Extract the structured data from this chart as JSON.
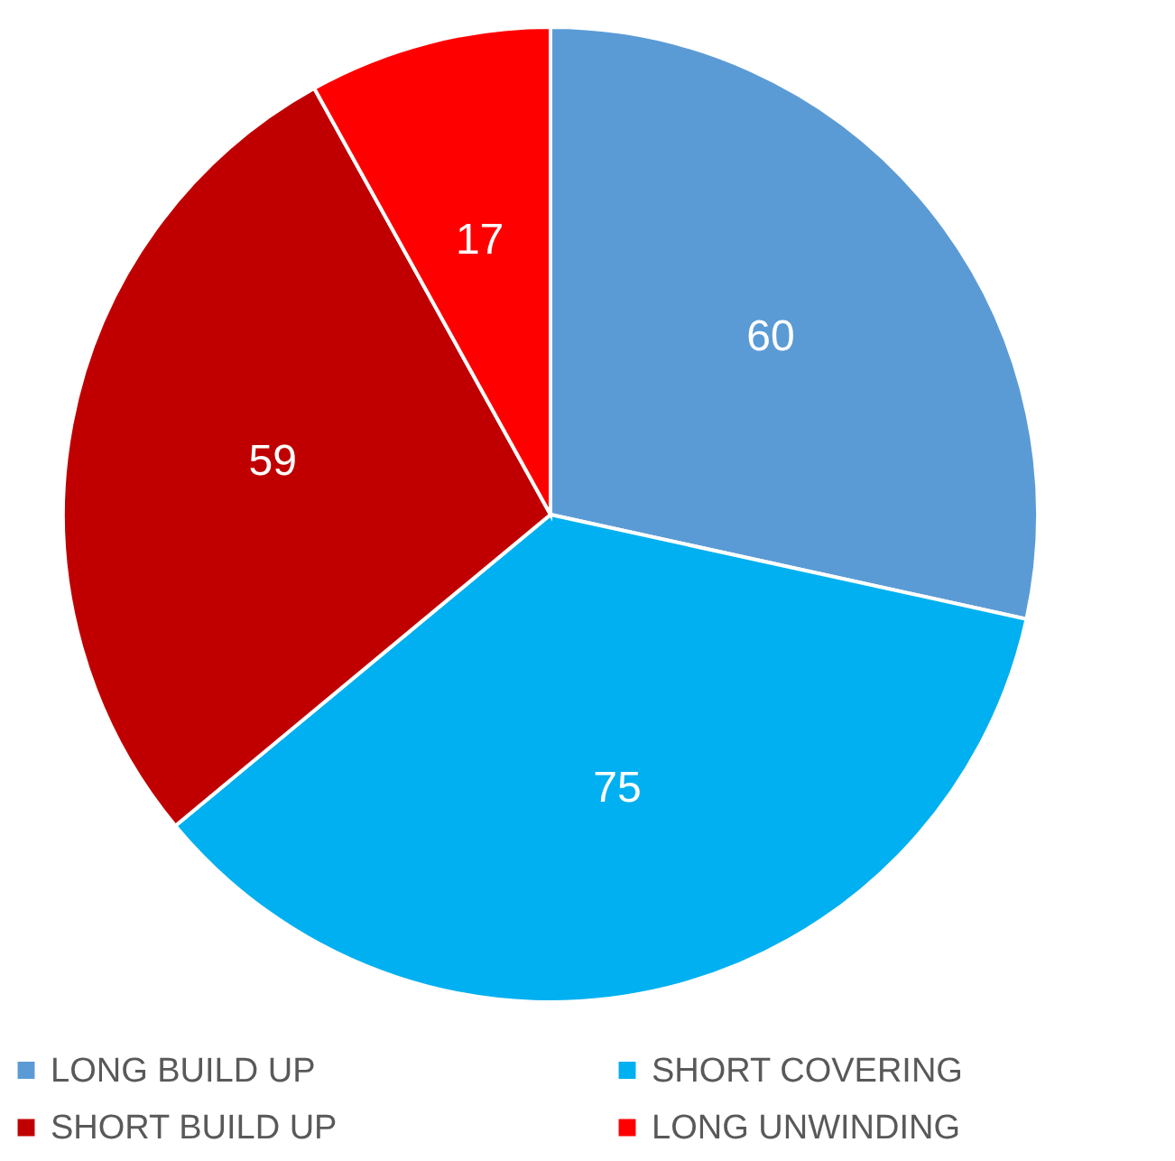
{
  "chart_data": {
    "type": "pie",
    "categories": [
      "LONG BUILD UP",
      "SHORT COVERING",
      "SHORT BUILD UP",
      "LONG UNWINDING"
    ],
    "values": [
      60,
      75,
      59,
      17
    ],
    "colors": [
      "#5b9bd5",
      "#00b0f0",
      "#c00000",
      "#ff0000"
    ],
    "data_labels": true,
    "legend": "bottom"
  }
}
